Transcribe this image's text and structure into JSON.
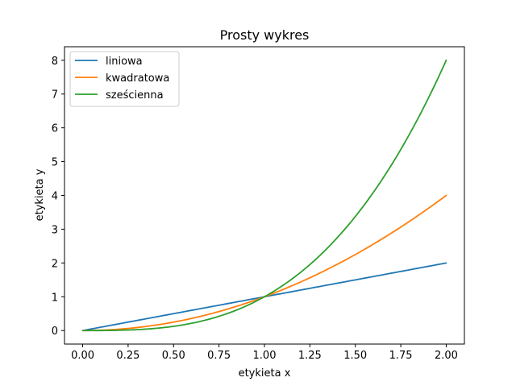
{
  "chart_data": {
    "type": "line",
    "title": "Prosty wykres",
    "xlabel": "etykieta x",
    "ylabel": "etykieta y",
    "xlim": [
      -0.1,
      2.1
    ],
    "ylim": [
      -0.4,
      8.4
    ],
    "x_ticks": [
      "0.00",
      "0.25",
      "0.50",
      "0.75",
      "1.00",
      "1.25",
      "1.50",
      "1.75",
      "2.00"
    ],
    "y_ticks": [
      "0",
      "1",
      "2",
      "3",
      "4",
      "5",
      "6",
      "7",
      "8"
    ],
    "grid": false,
    "legend_position": "top-left",
    "series": [
      {
        "name": "liniowa",
        "color": "#1f77b4",
        "function": "x",
        "x": [
          0,
          0.25,
          0.5,
          0.75,
          1.0,
          1.25,
          1.5,
          1.75,
          2.0
        ],
        "values": [
          0,
          0.25,
          0.5,
          0.75,
          1.0,
          1.25,
          1.5,
          1.75,
          2.0
        ]
      },
      {
        "name": "kwadratowa",
        "color": "#ff7f0e",
        "function": "x^2",
        "x": [
          0,
          0.25,
          0.5,
          0.75,
          1.0,
          1.25,
          1.5,
          1.75,
          2.0
        ],
        "values": [
          0,
          0.0625,
          0.25,
          0.5625,
          1.0,
          1.5625,
          2.25,
          3.0625,
          4.0
        ]
      },
      {
        "name": "sześcienna",
        "color": "#2ca02c",
        "function": "x^3",
        "x": [
          0,
          0.25,
          0.5,
          0.75,
          1.0,
          1.25,
          1.5,
          1.75,
          2.0
        ],
        "values": [
          0,
          0.015625,
          0.125,
          0.421875,
          1.0,
          1.953125,
          3.375,
          5.359375,
          8.0
        ]
      }
    ]
  }
}
